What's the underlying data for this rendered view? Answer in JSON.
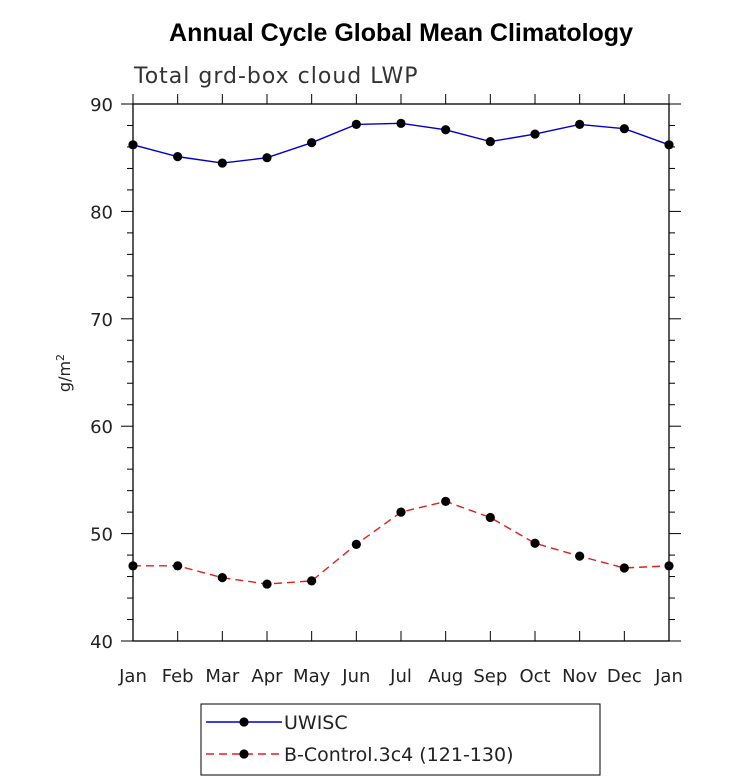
{
  "chart_data": {
    "type": "line",
    "title": "Annual Cycle Global Mean Climatology",
    "subtitle": "Total grd-box cloud LWP",
    "xlabel": "",
    "ylabel": "g/m",
    "ylabel_sup": "2",
    "categories": [
      "Jan",
      "Feb",
      "Mar",
      "Apr",
      "May",
      "Jun",
      "Jul",
      "Aug",
      "Sep",
      "Oct",
      "Nov",
      "Dec",
      "Jan"
    ],
    "ylim": [
      40,
      90
    ],
    "yticks": [
      40,
      50,
      60,
      70,
      80,
      90
    ],
    "series": [
      {
        "name": "UWISC",
        "color": "#0000cc",
        "style": "solid",
        "values": [
          86.2,
          85.1,
          84.5,
          85.0,
          86.4,
          88.1,
          88.2,
          87.6,
          86.5,
          87.2,
          88.1,
          87.7,
          86.2
        ]
      },
      {
        "name": "B-Control.3c4 (121-130)",
        "color": "#e02020",
        "style": "dashed",
        "values": [
          47.0,
          47.0,
          45.9,
          45.3,
          45.6,
          49.0,
          52.0,
          53.0,
          51.5,
          49.1,
          47.9,
          46.8,
          47.0
        ]
      }
    ],
    "legend_position": "bottom-left"
  }
}
